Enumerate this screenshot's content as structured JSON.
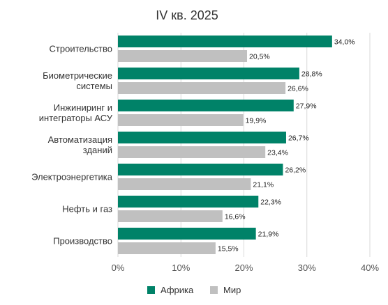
{
  "chart_data": {
    "type": "bar",
    "orientation": "horizontal",
    "title": "IV кв. 2025",
    "categories": [
      [
        "Строительство"
      ],
      [
        "Биометрические",
        "системы"
      ],
      [
        "Инжиниринг и",
        "интеграторы АСУ"
      ],
      [
        "Автоматизация",
        "зданий"
      ],
      [
        "Электроэнергетика"
      ],
      [
        "Нефть и газ"
      ],
      [
        "Производство"
      ]
    ],
    "series": [
      {
        "name": "Африка",
        "color": "#008268",
        "values": [
          34.0,
          28.8,
          27.9,
          26.7,
          26.2,
          22.3,
          21.9
        ],
        "labels": [
          "34,0%",
          "28,8%",
          "27,9%",
          "26,7%",
          "26,2%",
          "22,3%",
          "21,9%"
        ]
      },
      {
        "name": "Мир",
        "color": "#c0c0c0",
        "values": [
          20.5,
          26.6,
          19.9,
          23.4,
          21.1,
          16.6,
          15.5
        ],
        "labels": [
          "20,5%",
          "26,6%",
          "19,9%",
          "23,4%",
          "21,1%",
          "16,6%",
          "15,5%"
        ]
      }
    ],
    "xlim": [
      0,
      40
    ],
    "xticks": [
      0,
      10,
      20,
      30,
      40
    ],
    "xtick_labels": [
      "0%",
      "10%",
      "20%",
      "30%",
      "40%"
    ],
    "grid": true,
    "legend_position": "bottom"
  }
}
